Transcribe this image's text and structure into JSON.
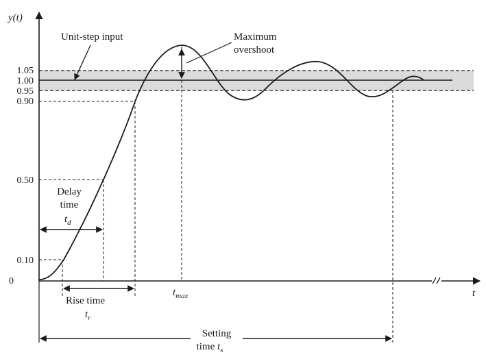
{
  "colors": {
    "ink": "#1a1a1a",
    "band": "#c8c8c8",
    "background": "#ffffff"
  },
  "axes": {
    "y_axis_label": "y(t)",
    "x_axis_label": "t",
    "y_ticks": [
      "1.05",
      "1.00",
      "0.95",
      "0.90",
      "0.50",
      "0.10",
      "0"
    ]
  },
  "annotations": {
    "unit_step_input": "Unit-step input",
    "max_overshoot_line1": "Maximum",
    "max_overshoot_line2": "overshoot",
    "delay_time_line1": "Delay",
    "delay_time_line2": "time",
    "delay_time_symbol": "t",
    "delay_time_subscript": "d",
    "rise_time": "Rise time",
    "rise_time_symbol": "t",
    "rise_time_subscript": "r",
    "tmax_symbol": "t",
    "tmax_subscript": "max",
    "settling_time_line1": "Setting",
    "settling_time_line2_prefix": "time ",
    "settling_time_symbol": "t",
    "settling_time_subscript": "s"
  },
  "axis_break_icon": "double-slash-break-icon"
}
